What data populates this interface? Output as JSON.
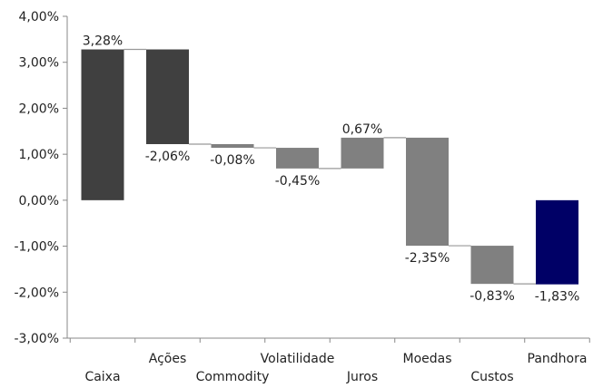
{
  "chart_data": {
    "type": "bar",
    "subtype": "waterfall",
    "categories": [
      "Caixa",
      "Ações",
      "Commodity",
      "Volatilidade",
      "Juros",
      "Moedas",
      "Custos",
      "Pandhora"
    ],
    "values": [
      3.28,
      -2.06,
      -0.08,
      -0.45,
      0.67,
      -2.35,
      -0.83,
      -1.83
    ],
    "kinds": [
      "start",
      "delta",
      "delta",
      "delta",
      "delta",
      "delta",
      "delta",
      "total"
    ],
    "data_labels": [
      "3,28%",
      "-2,06%",
      "-0,08%",
      "-0,45%",
      "0,67%",
      "-2,35%",
      "-0,83%",
      "-1,83%"
    ],
    "ylim": [
      -3,
      4
    ],
    "y_ticks": [
      4,
      3,
      2,
      1,
      0,
      -1,
      -2,
      -3
    ],
    "y_tick_labels": [
      "4,00%",
      "3,00%",
      "2,00%",
      "1,00%",
      "0,00%",
      "-1,00%",
      "-2,00%",
      "-3,00%"
    ],
    "bar_colors": [
      "#404040",
      "#404040",
      "#808080",
      "#808080",
      "#808080",
      "#808080",
      "#808080",
      "#000066"
    ],
    "grid": false,
    "legend": "none",
    "title": "",
    "xlabel": "",
    "ylabel": ""
  }
}
